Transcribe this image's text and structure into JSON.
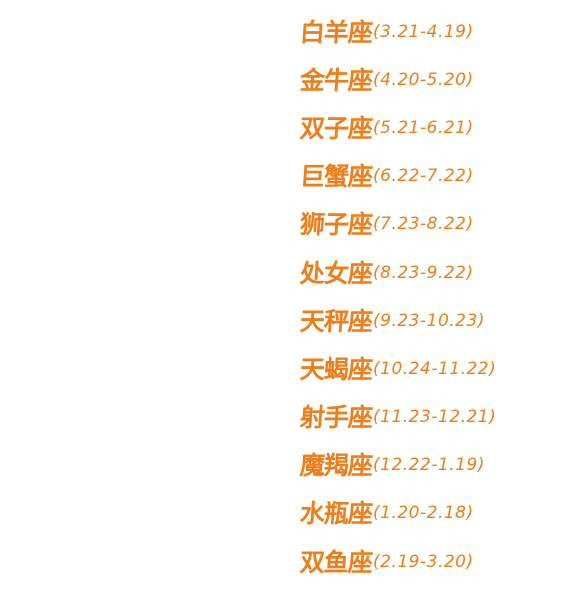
{
  "zodiac_signs": [
    {
      "name": "白羊座",
      "dates": "(3.21-4.19)"
    },
    {
      "name": "金牛座",
      "dates": "(4.20-5.20)"
    },
    {
      "name": "双子座",
      "dates": "(5.21-6.21)"
    },
    {
      "name": "巨蟹座",
      "dates": "(6.22-7.22)"
    },
    {
      "name": "狮子座",
      "dates": "(7.23-8.22)"
    },
    {
      "name": "处女座",
      "dates": "(8.23-9.22)"
    },
    {
      "name": "天秤座",
      "dates": "(9.23-10.23)"
    },
    {
      "name": "天蝎座",
      "dates": "(10.24-11.22)"
    },
    {
      "name": "射手座",
      "dates": "(11.23-12.21)"
    },
    {
      "name": "魔羯座",
      "dates": "(12.22-1.19)"
    },
    {
      "name": "水瓶座",
      "dates": "(1.20-2.18)"
    },
    {
      "name": "双鱼座",
      "dates": "(2.19-3.20)"
    }
  ],
  "colors": {
    "text": "#f07d18",
    "background": "#ffffff"
  }
}
